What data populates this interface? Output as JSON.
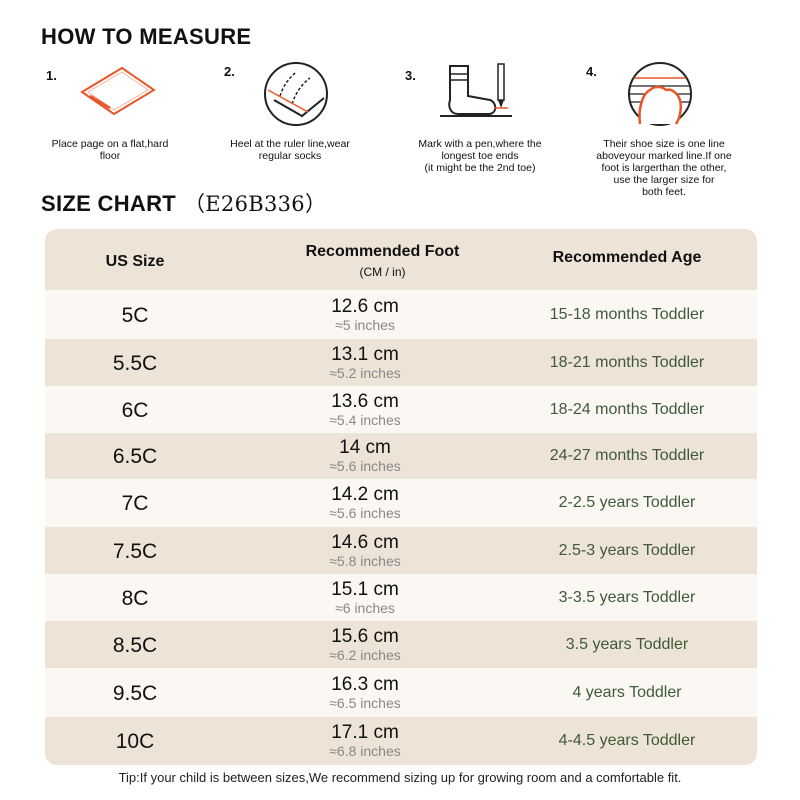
{
  "how_to": {
    "title": "HOW TO MEASURE",
    "steps": [
      {
        "number": "1.",
        "caption": "Place page on a flat,hard\nfloor",
        "icon": "paper-icon"
      },
      {
        "number": "2.",
        "caption": "Heel at the ruler line,wear\nregular socks",
        "icon": "heel-ruler-icon"
      },
      {
        "number": "3.",
        "caption": "Mark with a pen,where the\nlongest toe ends\n(it might be the 2nd toe)",
        "icon": "sock-pen-icon"
      },
      {
        "number": "4.",
        "caption": "Their shoe size is one line\naboveyour marked line.If one\nfoot is largerthan the other,\nuse the larger size for\nboth feet.",
        "icon": "toe-line-icon"
      }
    ]
  },
  "size_chart": {
    "title": "SIZE CHART",
    "code": "（E26B336）",
    "headers": {
      "size": "US Size",
      "foot": "Recommended Foot",
      "foot_unit": "(CM / in)",
      "age": "Recommended Age"
    },
    "rows": [
      {
        "size": "5C",
        "cm": "12.6 cm",
        "inch": "≈5 inches",
        "age": "15-18 months Toddler"
      },
      {
        "size": "5.5C",
        "cm": "13.1 cm",
        "inch": "≈5.2 inches",
        "age": "18-21 months Toddler"
      },
      {
        "size": "6C",
        "cm": "13.6 cm",
        "inch": "≈5.4 inches",
        "age": "18-24 months Toddler"
      },
      {
        "size": "6.5C",
        "cm": "14 cm",
        "inch": "≈5.6 inches",
        "age": "24-27 months Toddler"
      },
      {
        "size": "7C",
        "cm": "14.2 cm",
        "inch": "≈5.6 inches",
        "age": "2-2.5 years Toddler"
      },
      {
        "size": "7.5C",
        "cm": "14.6 cm",
        "inch": "≈5.8 inches",
        "age": "2.5-3 years Toddler"
      },
      {
        "size": "8C",
        "cm": "15.1 cm",
        "inch": "≈6 inches",
        "age": "3-3.5 years Toddler"
      },
      {
        "size": "8.5C",
        "cm": "15.6 cm",
        "inch": "≈6.2 inches",
        "age": "3.5 years Toddler"
      },
      {
        "size": "9.5C",
        "cm": "16.3 cm",
        "inch": "≈6.5 inches",
        "age": "4 years Toddler"
      },
      {
        "size": "10C",
        "cm": "17.1 cm",
        "inch": "≈6.8 inches",
        "age": "4-4.5 years Toddler"
      }
    ]
  },
  "tip": "Tip:If your child is between sizes,We recommend sizing up for growing room and a comfortable fit.",
  "colors": {
    "header_bg": "#ede3d6",
    "row_alt": "#ede3d6",
    "row_light": "#fbf8f3",
    "age_text": "#3d5a3a",
    "accent": "#e8572a"
  }
}
